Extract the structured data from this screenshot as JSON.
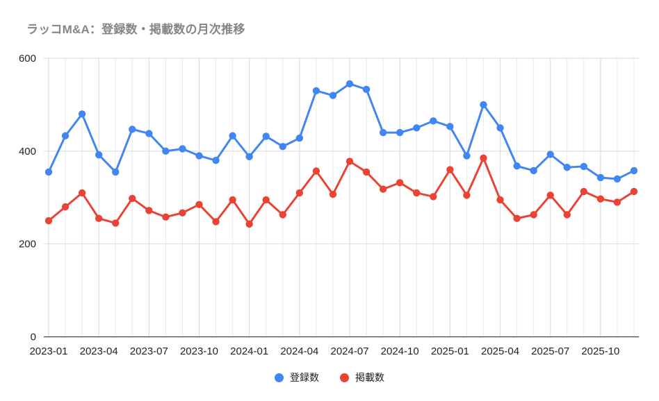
{
  "chart": {
    "title": "ラッコM&A：登録数・掲載数の月次推移"
  },
  "chart_data": {
    "type": "line",
    "title": "ラッコM&A：登録数・掲載数の月次推移",
    "x": [
      "2023-01",
      "2023-02",
      "2023-03",
      "2023-04",
      "2023-05",
      "2023-06",
      "2023-07",
      "2023-08",
      "2023-09",
      "2023-10",
      "2023-11",
      "2023-12",
      "2024-01",
      "2024-02",
      "2024-03",
      "2024-04",
      "2024-05",
      "2024-06",
      "2024-07",
      "2024-08",
      "2024-09",
      "2024-10",
      "2024-11",
      "2024-12",
      "2025-01",
      "2025-02",
      "2025-03",
      "2025-04",
      "2025-05",
      "2025-06",
      "2025-07",
      "2025-08",
      "2025-09",
      "2025-10",
      "2025-11",
      "2025-12"
    ],
    "x_label_every": 3,
    "x_tick_labels": [
      "2023-01",
      "2023-04",
      "2023-07",
      "2023-10",
      "2024-01",
      "2024-04",
      "2024-07",
      "2024-10",
      "2025-01",
      "2025-04",
      "2025-07",
      "2025-10"
    ],
    "series": [
      {
        "name": "登録数",
        "color": "#4285f4",
        "values": [
          355,
          433,
          480,
          392,
          355,
          447,
          438,
          400,
          405,
          390,
          380,
          433,
          388,
          432,
          410,
          428,
          530,
          520,
          545,
          533,
          440,
          440,
          450,
          465,
          453,
          390,
          500,
          450,
          368,
          358,
          393,
          365,
          367,
          343,
          340,
          358
        ]
      },
      {
        "name": "掲載数",
        "color": "#ea4335",
        "values": [
          250,
          280,
          310,
          255,
          245,
          298,
          272,
          258,
          267,
          285,
          248,
          295,
          243,
          295,
          263,
          310,
          357,
          307,
          378,
          355,
          318,
          332,
          310,
          302,
          360,
          305,
          385,
          295,
          255,
          263,
          305,
          263,
          313,
          297,
          290,
          313
        ]
      }
    ],
    "ylim": [
      0,
      600
    ],
    "y_ticks": [
      0,
      200,
      400,
      600
    ],
    "grid": {
      "horizontal": true,
      "vertical": true
    },
    "legend_position": "bottom"
  },
  "colors": {
    "h_grid": "#d9d9d9",
    "v_grid_minor": "#eaeaef",
    "v_grid_major": "#d6d6dc",
    "baseline": "#424242"
  }
}
